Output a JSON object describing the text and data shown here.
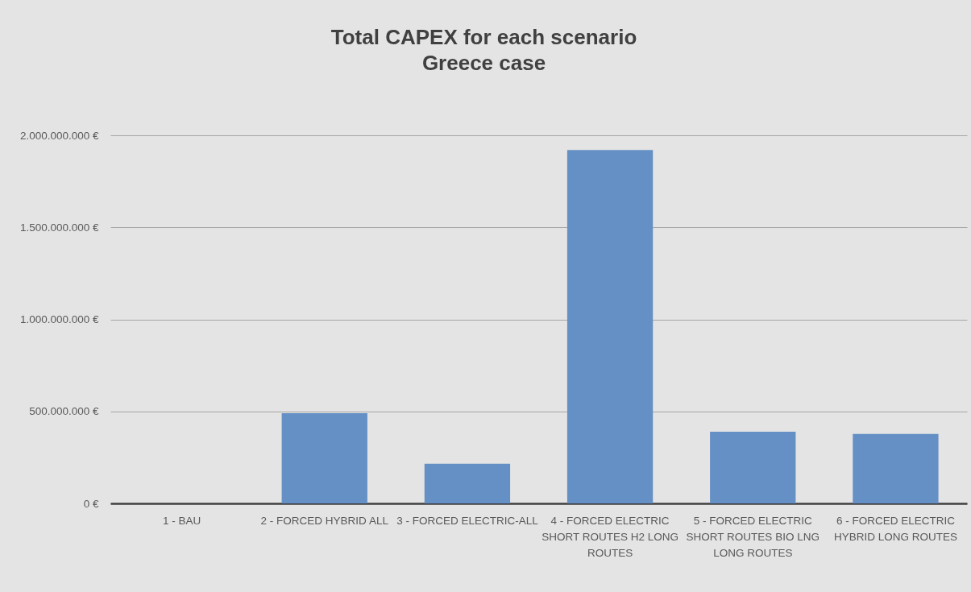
{
  "chart_data": {
    "type": "bar",
    "title": "Total CAPEX for each scenario",
    "subtitle": "Greece case",
    "categories": [
      "1 - BAU",
      "2 - FORCED HYBRID ALL",
      "3 - FORCED ELECTRIC-ALL",
      "4 - FORCED ELECTRIC SHORT ROUTES H2 LONG ROUTES",
      "5 - FORCED ELECTRIC SHORT ROUTES BIO LNG LONG ROUTES",
      "6 - FORCED ELECTRIC HYBRID LONG ROUTES"
    ],
    "values": [
      0,
      490000000,
      215000000,
      1920000000,
      390000000,
      377000000
    ],
    "color": "#6590c5",
    "ylim": [
      0,
      2000000000
    ],
    "yticks": [
      {
        "value": 0,
        "label": "0 €"
      },
      {
        "value": 500000000,
        "label": "500.000.000 €"
      },
      {
        "value": 1000000000,
        "label": "1.000.000.000 €"
      },
      {
        "value": 1500000000,
        "label": "1.500.000.000 €"
      },
      {
        "value": 2000000000,
        "label": "2.000.000.000 €"
      }
    ],
    "grid": "y"
  }
}
